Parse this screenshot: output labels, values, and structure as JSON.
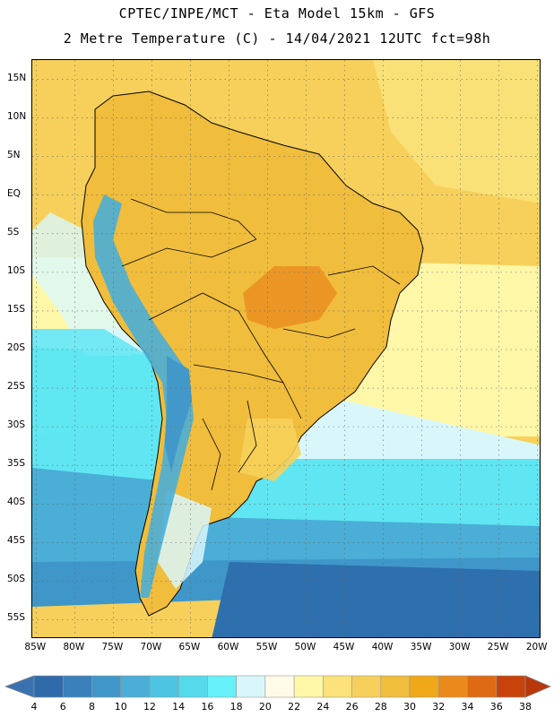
{
  "header": {
    "line1": "CPTEC/INPE/MCT -  Eta Model 15km - GFS",
    "line2": "2 Metre Temperature (C) - 14/04/2021 12UTC fct=98h"
  },
  "map": {
    "lat_labels": [
      "15N",
      "10N",
      "5N",
      "EQ",
      "5S",
      "10S",
      "15S",
      "20S",
      "25S",
      "30S",
      "35S",
      "40S",
      "45S",
      "50S",
      "55S"
    ],
    "lat_values": [
      15,
      10,
      5,
      0,
      -5,
      -10,
      -15,
      -20,
      -25,
      -30,
      -35,
      -40,
      -45,
      -50,
      -55
    ],
    "lon_labels": [
      "85W",
      "80W",
      "75W",
      "70W",
      "65W",
      "60W",
      "55W",
      "50W",
      "45W",
      "40W",
      "35W",
      "30W",
      "25W",
      "20W"
    ],
    "lon_values": [
      -85,
      -80,
      -75,
      -70,
      -65,
      -60,
      -55,
      -50,
      -45,
      -40,
      -35,
      -30,
      -25,
      -20
    ],
    "extent": {
      "lon_min": -85.5,
      "lon_max": -19.5,
      "lat_min": -57.5,
      "lat_max": 17.5
    },
    "gridlines": "dotted"
  },
  "colorbar": {
    "labels": [
      "4",
      "6",
      "8",
      "10",
      "12",
      "14",
      "16",
      "18",
      "20",
      "22",
      "24",
      "26",
      "28",
      "30",
      "32",
      "34",
      "36",
      "38"
    ],
    "below_color": "#3a72b0",
    "above_color": "#b8380c",
    "colors": [
      "#2f6aab",
      "#3a80bb",
      "#3f97c9",
      "#4aaed7",
      "#4dc5e2",
      "#55daec",
      "#66f1f8",
      "#d9f7fb",
      "#fffbe8",
      "#fef7a8",
      "#fbe27a",
      "#f6d05a",
      "#f0bd3c",
      "#f1a818",
      "#ea8a1c",
      "#df6a14",
      "#c8430c"
    ]
  },
  "field_colors": {
    "ocean_cold": "#2e6fae",
    "ocean_cool": "#3f97c9",
    "ocean_mid": "#4aaed7",
    "ocean_cyan": "#5fe6f2",
    "ocean_pale": "#d9f7fb",
    "ocean_warm": "#fef7a8",
    "ocean_hot": "#f6d05a",
    "land_hot": "#f0bd3c",
    "land_warm": "#f6d05a",
    "land_very_hot": "#ea8a1c",
    "andes": "#4aaed7"
  }
}
